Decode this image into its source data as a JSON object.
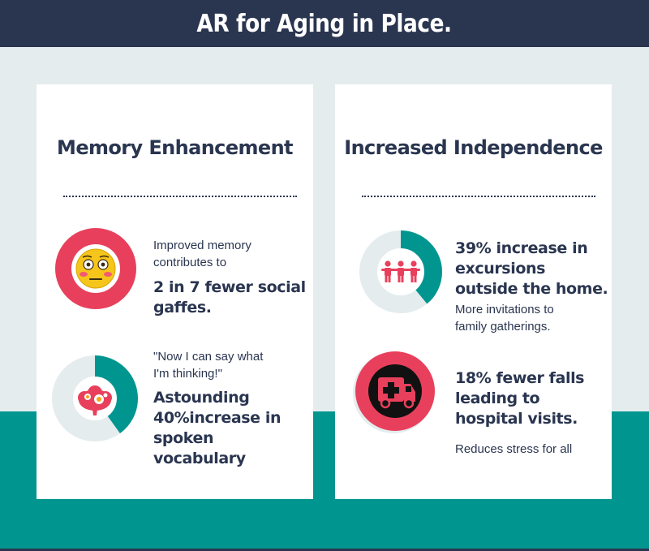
{
  "header": {
    "title": "AR for Aging in Place."
  },
  "memory_card": {
    "title": "Memory Enhancement",
    "item1": {
      "intro_line1": "Improved memory",
      "intro_line2": "contributes to",
      "stat_line1": "2 in 7 fewer social",
      "stat_line2": "gaffes.",
      "icon": "embarrassed-face-icon"
    },
    "item2": {
      "quote_line1": "\"Now I can say what",
      "quote_line2": "I'm thinking!\"",
      "stat_line1": "Astounding",
      "stat_line2": "40%increase in",
      "stat_line3": "spoken",
      "stat_line4": "vocabulary",
      "icon": "brain-flowers-icon",
      "ring_fraction": 0.4
    }
  },
  "independence_card": {
    "title": "Increased Independence",
    "item1": {
      "stat_line1": "39% increase in",
      "stat_line2": "excursions",
      "stat_line3": "outside the home.",
      "note_line1": "More invitations to",
      "note_line2": "family gatherings.",
      "icon": "family-group-icon",
      "ring_fraction": 0.39
    },
    "item2": {
      "stat_line1": "18% fewer falls",
      "stat_line2": "leading to",
      "stat_line3": "hospital visits.",
      "note": "Reduces stress for all",
      "icon": "ambulance-icon"
    }
  },
  "colors": {
    "navy": "#2a3550",
    "teal": "#00968f",
    "coral": "#e8405c",
    "light_gray": "#e4ecee",
    "white": "#ffffff"
  }
}
